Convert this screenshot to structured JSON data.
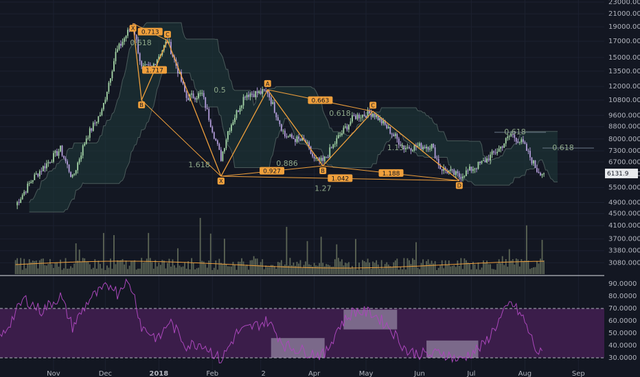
{
  "chart_data": [
    {
      "type": "candlestick",
      "symbol_price_label": "6131.9",
      "y_scale": "log",
      "y_ticks": [
        "23000.0000",
        "21000.0000",
        "19000.0000",
        "17000.0000",
        "15000.0000",
        "13500.0000",
        "12000.0000",
        "10800.0000",
        "9600.0000",
        "8800.0000",
        "8000.0000",
        "7300.0000",
        "6700.0000",
        "6100.0000",
        "5500.0000",
        "4900.0000",
        "4500.0000",
        "4100.0000",
        "3700.0000",
        "3380.0000",
        "3080.0000"
      ],
      "x_ticks": [
        "Nov",
        "Dec",
        "2018",
        "Feb",
        "2",
        "Apr",
        "May",
        "Jun",
        "Jul",
        "Aug",
        "Sep"
      ],
      "price_path": [
        [
          "2017-10-10",
          4800
        ],
        [
          "2017-10-20",
          5900
        ],
        [
          "2017-11-05",
          7400
        ],
        [
          "2017-11-12",
          5900
        ],
        [
          "2017-11-20",
          8100
        ],
        [
          "2017-11-29",
          9900
        ],
        [
          "2017-12-07",
          15500
        ],
        [
          "2017-12-17",
          19500
        ],
        [
          "2017-12-22",
          13800
        ],
        [
          "2017-12-28",
          13900
        ],
        [
          "2018-01-06",
          17100
        ],
        [
          "2018-01-12",
          13600
        ],
        [
          "2018-01-17",
          11000
        ],
        [
          "2018-01-26",
          11300
        ],
        [
          "2018-02-06",
          6900
        ],
        [
          "2018-02-10",
          8500
        ],
        [
          "2018-02-20",
          11300
        ],
        [
          "2018-03-05",
          11500
        ],
        [
          "2018-03-15",
          8200
        ],
        [
          "2018-03-27",
          7800
        ],
        [
          "2018-04-01",
          6800
        ],
        [
          "2018-04-06",
          6700
        ],
        [
          "2018-04-15",
          8100
        ],
        [
          "2018-04-24",
          9500
        ],
        [
          "2018-05-05",
          9800
        ],
        [
          "2018-05-15",
          8500
        ],
        [
          "2018-05-23",
          7500
        ],
        [
          "2018-06-08",
          7600
        ],
        [
          "2018-06-13",
          6400
        ],
        [
          "2018-06-24",
          6000
        ],
        [
          "2018-07-08",
          6700
        ],
        [
          "2018-07-17",
          7400
        ],
        [
          "2018-07-24",
          8300
        ],
        [
          "2018-07-31",
          7700
        ],
        [
          "2018-08-08",
          6300
        ],
        [
          "2018-08-12",
          6131.9
        ]
      ],
      "patterns": [
        {
          "name": "XABCD",
          "points": [
            {
              "label": "X",
              "date": "2017-12-17",
              "price": 19500
            },
            {
              "label": "B",
              "date": "2017-12-22",
              "price": 10800
            },
            {
              "label": "C",
              "date": "2018-01-06",
              "price": 17100
            },
            {
              "label": "X",
              "date": "2018-02-06",
              "price": 6000
            }
          ],
          "ratios": [
            "0.713",
            "0.618",
            "1.717",
            "1.618"
          ]
        },
        {
          "name": "XABCD",
          "points": [
            {
              "label": "X",
              "date": "2018-02-06",
              "price": 6000
            },
            {
              "label": "A",
              "date": "2018-03-05",
              "price": 11700
            },
            {
              "label": "B",
              "date": "2018-04-06",
              "price": 6500
            },
            {
              "label": "C",
              "date": "2018-05-05",
              "price": 9900
            },
            {
              "label": "D",
              "date": "2018-06-24",
              "price": 5800
            }
          ],
          "ratios": [
            "0.5",
            "0.663",
            "0.618",
            "0.886",
            "0.927",
            "1.042",
            "1.188",
            "1.13",
            "1.27"
          ]
        }
      ],
      "fib_labels": [
        "0.618",
        "1.717",
        "1.618",
        "0.5",
        "0.663",
        "0.618",
        "0.886",
        "0.927",
        "1.042",
        "1.188",
        "1.13",
        "1.27",
        "0.618",
        "0.618"
      ],
      "point_labels": [
        "A",
        "B",
        "C",
        "X",
        "A",
        "B",
        "C",
        "D"
      ],
      "colors": {
        "up": "#a5d6a7",
        "down": "#b39ddb",
        "pattern": "#f0a03c",
        "volume": "#5d6656",
        "volume_ma": "#f0a03c",
        "cloud": "#1f3a3a",
        "rsi": "#ab47bc",
        "rsi_band": "#3b1d4a"
      }
    },
    {
      "type": "line",
      "name": "RSI",
      "y_ticks": [
        "90.0000",
        "80.0000",
        "70.0000",
        "60.0000",
        "50.0000",
        "40.0000",
        "30.0000"
      ],
      "levels": [
        70,
        30
      ],
      "range": [
        20,
        95
      ],
      "values": [
        [
          "2017-10-01",
          45
        ],
        [
          "2017-10-15",
          78
        ],
        [
          "2017-10-25",
          68
        ],
        [
          "2017-11-05",
          80
        ],
        [
          "2017-11-12",
          55
        ],
        [
          "2017-11-22",
          78
        ],
        [
          "2017-12-05",
          90
        ],
        [
          "2017-12-08",
          82
        ],
        [
          "2017-12-12",
          92
        ],
        [
          "2017-12-17",
          85
        ],
        [
          "2017-12-22",
          55
        ],
        [
          "2018-01-01",
          45
        ],
        [
          "2018-01-07",
          60
        ],
        [
          "2018-01-17",
          40
        ],
        [
          "2018-01-26",
          42
        ],
        [
          "2018-02-06",
          28
        ],
        [
          "2018-02-15",
          50
        ],
        [
          "2018-03-05",
          60
        ],
        [
          "2018-03-15",
          40
        ],
        [
          "2018-03-27",
          35
        ],
        [
          "2018-04-07",
          32
        ],
        [
          "2018-04-15",
          55
        ],
        [
          "2018-04-24",
          68
        ],
        [
          "2018-05-05",
          66
        ],
        [
          "2018-05-15",
          54
        ],
        [
          "2018-05-25",
          35
        ],
        [
          "2018-06-08",
          32
        ],
        [
          "2018-06-13",
          35
        ],
        [
          "2018-06-24",
          28
        ],
        [
          "2018-07-08",
          40
        ],
        [
          "2018-07-17",
          60
        ],
        [
          "2018-07-24",
          75
        ],
        [
          "2018-07-31",
          62
        ],
        [
          "2018-08-08",
          35
        ],
        [
          "2018-08-12",
          32
        ]
      ],
      "highlight_boxes": [
        {
          "from": "2018-03-07",
          "to": "2018-04-07",
          "low": 30,
          "high": 46
        },
        {
          "from": "2018-04-18",
          "to": "2018-05-19",
          "low": 53,
          "high": 69
        },
        {
          "from": "2018-06-05",
          "to": "2018-07-05",
          "low": 30,
          "high": 44
        }
      ]
    }
  ]
}
